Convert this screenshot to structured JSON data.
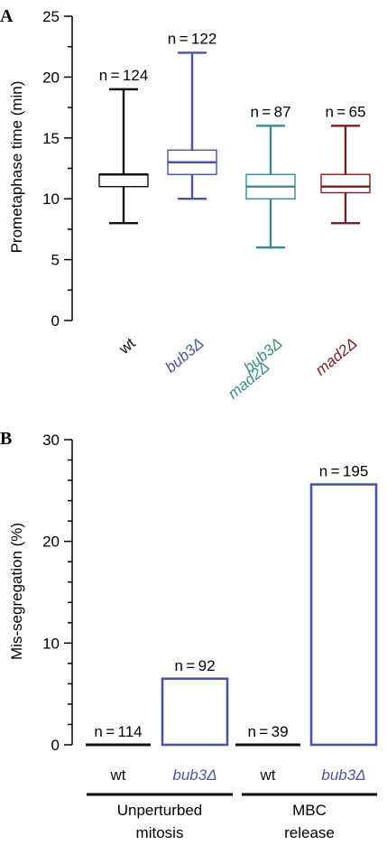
{
  "chart_data": [
    {
      "panel": "A",
      "type": "box",
      "ylabel": "Prometaphase time (min)",
      "ylim": [
        0,
        25
      ],
      "yticks": [
        0,
        5,
        10,
        15,
        20,
        25
      ],
      "series": [
        {
          "category": [
            "wt"
          ],
          "n": "n = 124",
          "min": 8,
          "q1": 11,
          "median": 12,
          "q3": 12,
          "max": 19,
          "color": "#111111"
        },
        {
          "category": [
            "bub3Δ"
          ],
          "n": "n = 122",
          "min": 10,
          "q1": 12,
          "median": 13,
          "q3": 14,
          "max": 22,
          "color": "#4a54a0"
        },
        {
          "category": [
            "bub3Δ",
            "mad2Δ"
          ],
          "n": "n = 87",
          "min": 6,
          "q1": 10,
          "median": 11,
          "q3": 12,
          "max": 16,
          "color": "#3f8a8a"
        },
        {
          "category": [
            "mad2Δ"
          ],
          "n": "n = 65",
          "min": 8,
          "q1": 10.5,
          "median": 11,
          "q3": 12,
          "max": 16,
          "color": "#7a1f1f"
        }
      ]
    },
    {
      "panel": "B",
      "type": "bar",
      "ylabel": "Mis-segregation (%)",
      "ylim": [
        0,
        30
      ],
      "yticks": [
        0,
        10,
        20,
        30
      ],
      "categories": [
        "wt",
        "bub3Δ",
        "wt",
        "bub3Δ"
      ],
      "values": [
        0,
        6.5,
        0,
        25.6
      ],
      "n_labels": [
        "n = 114",
        "n = 92",
        "n = 39",
        "n = 195"
      ],
      "colors": [
        "#111111",
        "#4a54a0",
        "#111111",
        "#4a54a0"
      ],
      "groups": [
        {
          "lines": [
            "Unperturbed",
            "mitosis"
          ]
        },
        {
          "lines": [
            "MBC",
            "release"
          ]
        }
      ]
    }
  ]
}
